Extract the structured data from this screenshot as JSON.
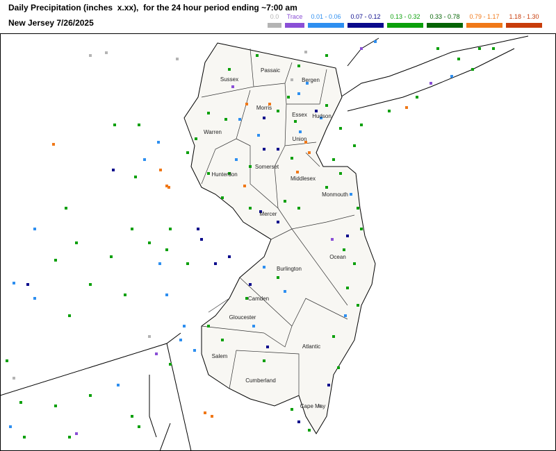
{
  "header": {
    "title": "Daily Precipitation (inches  x.xx),  for the 24 hour period ending ~7:00 am",
    "subtitle": "New Jersey 7/26/2025"
  },
  "legend": [
    {
      "label": "0.0",
      "color": "#b4b4b4"
    },
    {
      "label": "Trace",
      "color": "#8a4fd6"
    },
    {
      "label": "0.01 - 0.06",
      "color": "#2e8ff0"
    },
    {
      "label": "0.07 - 0.12",
      "color": "#0a0a8c"
    },
    {
      "label": "0.13 - 0.32",
      "color": "#0ba00b"
    },
    {
      "label": "0.33 - 0.78",
      "color": "#056405"
    },
    {
      "label": "0.79 - 1.17",
      "color": "#f07818"
    },
    {
      "label": "1.18 - 1.30",
      "color": "#c83c0a"
    }
  ],
  "counties": [
    "Sussex",
    "Passaic",
    "Bergen",
    "Morris",
    "Essex",
    "Hudson",
    "Warren",
    "Union",
    "Somerset",
    "Hunterdon",
    "Middlesex",
    "Monmouth",
    "Mercer",
    "Ocean",
    "Burlington",
    "Camden",
    "Gloucester",
    "Atlantic",
    "Salem",
    "Cumberland",
    "Cape May"
  ]
}
